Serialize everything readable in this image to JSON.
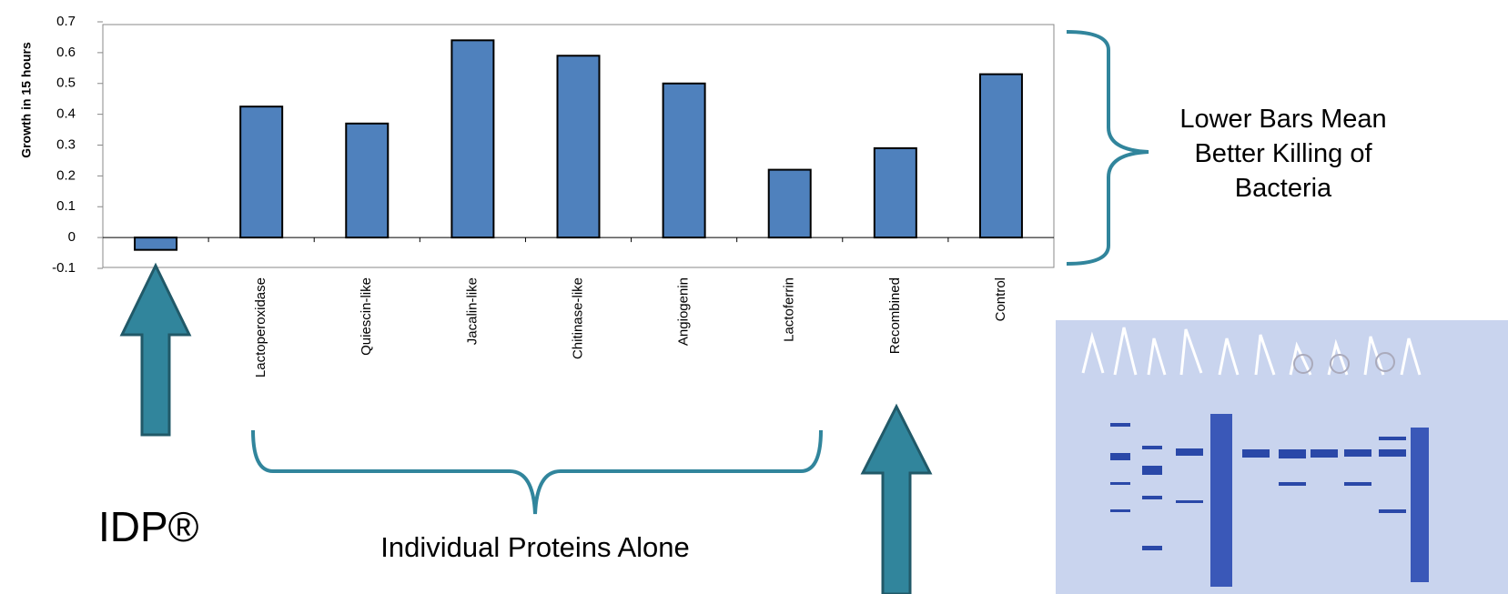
{
  "chart_data": {
    "type": "bar",
    "y_label": "Growth in 15 hours",
    "categories": [
      null,
      "Lactoperoxidase",
      "Quiescin-like",
      "Jacalin-like",
      "Chitinase-like",
      "Angiogenin",
      "Lactoferrin",
      "Recombined",
      "Control"
    ],
    "values": [
      -0.04,
      0.425,
      0.37,
      0.64,
      0.59,
      0.5,
      0.22,
      0.29,
      0.53
    ],
    "color": "#4f81bd",
    "ylim": [
      -0.1,
      0.7
    ],
    "yticks": [
      -0.1,
      0,
      0.1,
      0.2,
      0.3,
      0.4,
      0.5,
      0.6,
      0.7
    ],
    "annotations": [
      "Lower Bars Mean Better Killing of Bacteria",
      "IDP®",
      "Individual Proteins Alone"
    ]
  }
}
